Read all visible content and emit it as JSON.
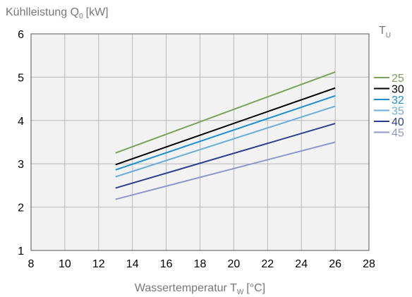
{
  "chart_data": {
    "type": "line",
    "ylabel": "Kühlleistung Q",
    "ylabel_sub": "0",
    "ylabel_unit": "[kW]",
    "xlabel": "Wassertemperatur T",
    "xlabel_sub": "W",
    "xlabel_unit": "[°C]",
    "legend_title": "T",
    "legend_title_sub": "U",
    "legend_position": "right",
    "grid": true,
    "xlim": [
      8,
      28
    ],
    "ylim": [
      1,
      6
    ],
    "xticks": [
      "8",
      "10",
      "12",
      "14",
      "16",
      "18",
      "20",
      "22",
      "24",
      "26",
      "28"
    ],
    "yticks": [
      "1",
      "2",
      "3",
      "4",
      "5",
      "6"
    ],
    "series": [
      {
        "name": "25",
        "color": "#7aa35a",
        "x": [
          13,
          26
        ],
        "y": [
          3.25,
          5.12
        ]
      },
      {
        "name": "30",
        "color": "#000000",
        "x": [
          13,
          26
        ],
        "y": [
          2.98,
          4.75
        ]
      },
      {
        "name": "32",
        "color": "#1d8fd0",
        "x": [
          13,
          26
        ],
        "y": [
          2.86,
          4.57
        ]
      },
      {
        "name": "35",
        "color": "#6aaed9",
        "x": [
          13,
          26
        ],
        "y": [
          2.7,
          4.33
        ]
      },
      {
        "name": "40",
        "color": "#2c3f8c",
        "x": [
          13,
          26
        ],
        "y": [
          2.44,
          3.93
        ]
      },
      {
        "name": "45",
        "color": "#8f96c8",
        "x": [
          13,
          26
        ],
        "y": [
          2.18,
          3.5
        ]
      }
    ]
  }
}
